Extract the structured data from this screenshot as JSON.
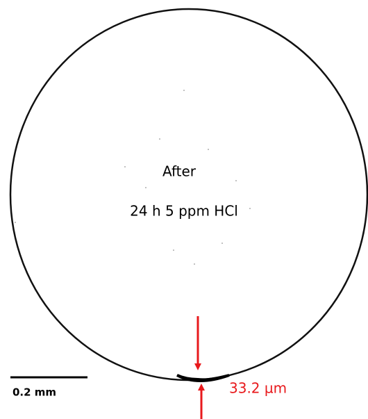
{
  "labels": {
    "condition_title": "After",
    "condition_detail": "24 h 5 ppm HCl",
    "scale_bar": "0.2 mm",
    "thickness": "33.2 µm"
  }
}
